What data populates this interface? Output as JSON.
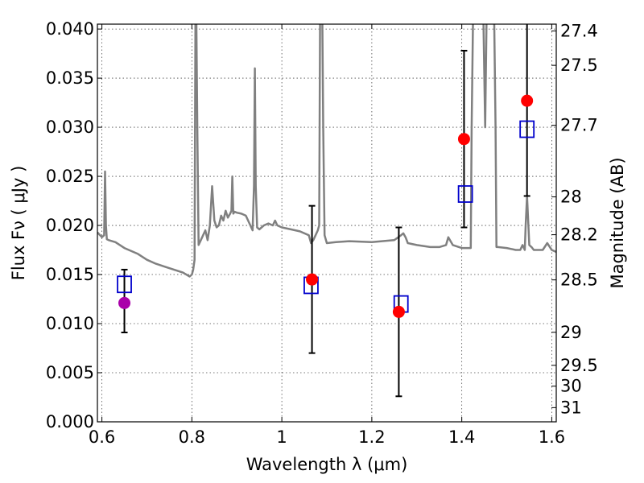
{
  "chart_data": {
    "type": "scatter",
    "xlabel": "Wavelength  λ (μm)",
    "ylabel": "Flux  Fν ( μJy )",
    "ylabel2": "Magnitude (AB)",
    "xlim": [
      0.59,
      1.61
    ],
    "ylim": [
      0.0,
      0.0405
    ],
    "grid": true,
    "x_ticks": [
      {
        "value": 0.6,
        "label": "0.6"
      },
      {
        "value": 0.8,
        "label": "0.8"
      },
      {
        "value": 1.0,
        "label": "1"
      },
      {
        "value": 1.2,
        "label": "1.2"
      },
      {
        "value": 1.4,
        "label": "1.4"
      },
      {
        "value": 1.6,
        "label": "1.6"
      }
    ],
    "y_ticks": [
      {
        "value": 0.0,
        "label": "0.000"
      },
      {
        "value": 0.005,
        "label": "0.005"
      },
      {
        "value": 0.01,
        "label": "0.010"
      },
      {
        "value": 0.015,
        "label": "0.015"
      },
      {
        "value": 0.02,
        "label": "0.020"
      },
      {
        "value": 0.025,
        "label": "0.025"
      },
      {
        "value": 0.03,
        "label": "0.030"
      },
      {
        "value": 0.035,
        "label": "0.035"
      },
      {
        "value": 0.04,
        "label": "0.040"
      }
    ],
    "mag_ticks": [
      {
        "mag": 27.4,
        "label": "27.4"
      },
      {
        "mag": 27.5,
        "label": "27.5"
      },
      {
        "mag": 27.7,
        "label": "27.7"
      },
      {
        "mag": 28.0,
        "label": "28"
      },
      {
        "mag": 28.2,
        "label": "28.2"
      },
      {
        "mag": 28.5,
        "label": "28.5"
      },
      {
        "mag": 29.0,
        "label": "29"
      },
      {
        "mag": 29.5,
        "label": "29.5"
      },
      {
        "mag": 30.0,
        "label": "30"
      },
      {
        "mag": 31.0,
        "label": "31"
      }
    ],
    "model_sed": {
      "color": "#808080",
      "x": [
        0.59,
        0.6,
        0.605,
        0.607,
        0.609,
        0.611,
        0.615,
        0.63,
        0.65,
        0.68,
        0.7,
        0.72,
        0.74,
        0.76,
        0.78,
        0.795,
        0.8,
        0.803,
        0.806,
        0.808,
        0.81,
        0.812,
        0.815,
        0.82,
        0.825,
        0.83,
        0.835,
        0.84,
        0.845,
        0.85,
        0.855,
        0.86,
        0.865,
        0.87,
        0.875,
        0.88,
        0.885,
        0.888,
        0.89,
        0.892,
        0.895,
        0.9,
        0.91,
        0.92,
        0.93,
        0.935,
        0.938,
        0.94,
        0.942,
        0.945,
        0.95,
        0.96,
        0.97,
        0.98,
        0.985,
        0.99,
        1.0,
        1.02,
        1.04,
        1.06,
        1.065,
        1.07,
        1.075,
        1.08,
        1.083,
        1.085,
        1.087,
        1.09,
        1.092,
        1.095,
        1.1,
        1.12,
        1.15,
        1.2,
        1.25,
        1.265,
        1.27,
        1.275,
        1.28,
        1.3,
        1.33,
        1.35,
        1.365,
        1.37,
        1.38,
        1.4,
        1.42,
        1.422,
        1.425,
        1.428,
        1.43,
        1.435,
        1.44,
        1.442,
        1.445,
        1.448,
        1.452,
        1.455,
        1.458,
        1.46,
        1.465,
        1.47,
        1.472,
        1.475,
        1.477,
        1.48,
        1.5,
        1.52,
        1.53,
        1.535,
        1.54,
        1.542,
        1.545,
        1.548,
        1.55,
        1.555,
        1.56,
        1.57,
        1.58,
        1.59,
        1.6,
        1.61
      ],
      "y": [
        0.0193,
        0.0188,
        0.019,
        0.0255,
        0.02,
        0.0186,
        0.0185,
        0.0183,
        0.0177,
        0.0171,
        0.0165,
        0.0161,
        0.0158,
        0.0155,
        0.0152,
        0.0148,
        0.015,
        0.0155,
        0.0165,
        0.041,
        0.041,
        0.03,
        0.018,
        0.0185,
        0.019,
        0.0195,
        0.0185,
        0.02,
        0.024,
        0.0205,
        0.0198,
        0.02,
        0.021,
        0.0205,
        0.0215,
        0.0208,
        0.0212,
        0.0215,
        0.025,
        0.0212,
        0.0214,
        0.0213,
        0.0212,
        0.021,
        0.02,
        0.0195,
        0.024,
        0.036,
        0.024,
        0.0198,
        0.0196,
        0.02,
        0.0202,
        0.02,
        0.0205,
        0.02,
        0.0198,
        0.0196,
        0.0194,
        0.019,
        0.0182,
        0.0185,
        0.019,
        0.0195,
        0.02,
        0.041,
        0.041,
        0.041,
        0.03,
        0.019,
        0.0182,
        0.0183,
        0.0184,
        0.0183,
        0.0185,
        0.019,
        0.0192,
        0.0188,
        0.0182,
        0.018,
        0.0178,
        0.0178,
        0.018,
        0.0188,
        0.018,
        0.0177,
        0.0177,
        0.03,
        0.041,
        0.041,
        0.041,
        0.041,
        0.041,
        0.041,
        0.041,
        0.041,
        0.03,
        0.041,
        0.041,
        0.041,
        0.041,
        0.041,
        0.041,
        0.03,
        0.0178,
        0.0178,
        0.0177,
        0.0175,
        0.0175,
        0.018,
        0.0175,
        0.02,
        0.023,
        0.02,
        0.018,
        0.0178,
        0.0175,
        0.0175,
        0.0175,
        0.0182,
        0.0175,
        0.0173
      ]
    },
    "observed": {
      "color": "#ff0000",
      "points": [
        {
          "x": 1.067,
          "y": 0.0145,
          "yerr": 0.0075
        },
        {
          "x": 1.26,
          "y": 0.0112,
          "yerr": 0.0086
        },
        {
          "x": 1.405,
          "y": 0.0288,
          "yerr": 0.009
        },
        {
          "x": 1.545,
          "y": 0.0327,
          "yerr": 0.0097
        }
      ]
    },
    "observed_optical": {
      "color": "#aa00aa",
      "points": [
        {
          "x": 0.65,
          "y": 0.0121,
          "yerr_low": 0.003,
          "yerr_high": 0.0034
        }
      ]
    },
    "model_photometry": {
      "color": "#0000cc",
      "points": [
        {
          "x": 0.65,
          "y": 0.014
        },
        {
          "x": 1.065,
          "y": 0.0139
        },
        {
          "x": 1.265,
          "y": 0.012
        },
        {
          "x": 1.408,
          "y": 0.0232
        },
        {
          "x": 1.545,
          "y": 0.0298
        }
      ]
    }
  }
}
